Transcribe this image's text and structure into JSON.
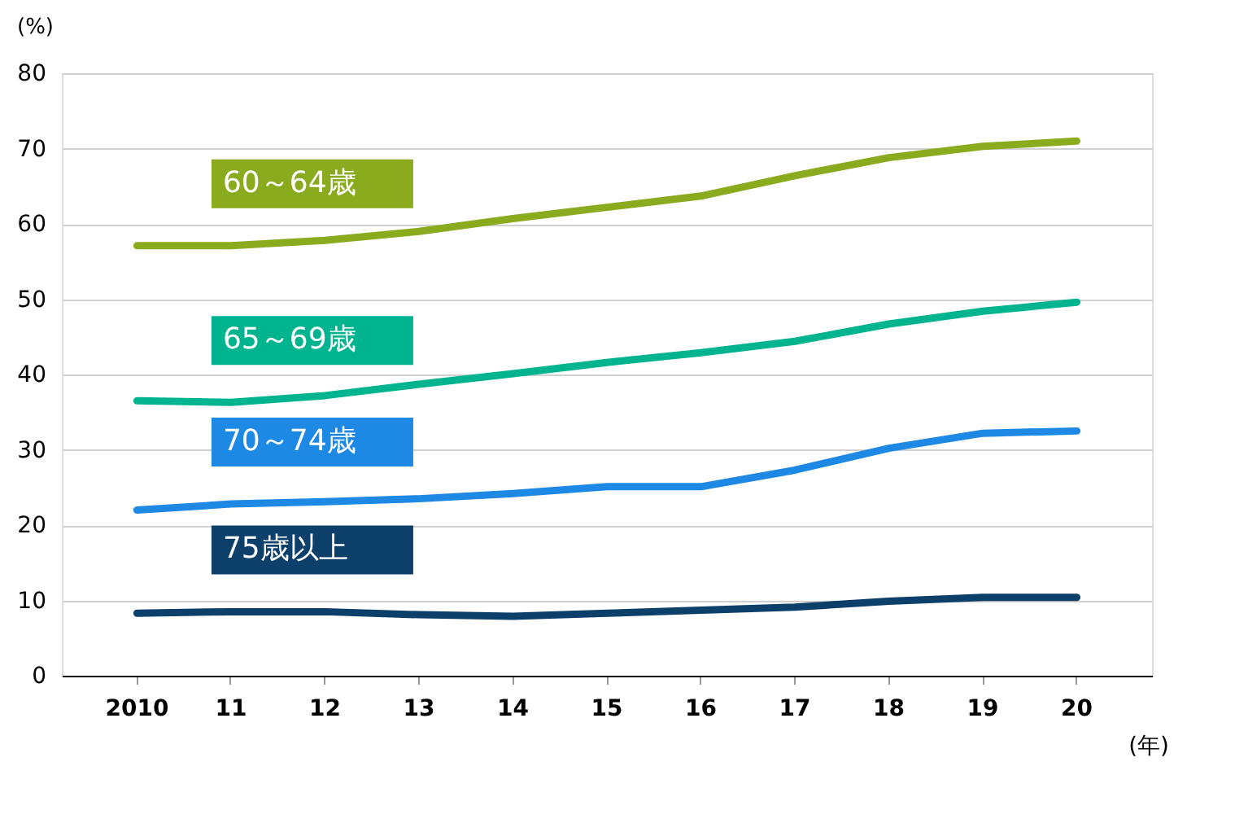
{
  "chart_data": {
    "type": "line",
    "xlabel": "(年)",
    "ylabel": "(%)",
    "categories": [
      "2010",
      "11",
      "12",
      "13",
      "14",
      "15",
      "16",
      "17",
      "18",
      "19",
      "20"
    ],
    "series": [
      {
        "name": "60～64歳",
        "color": "#8aab1e",
        "values": [
          57.1,
          57.1,
          57.8,
          59.0,
          60.7,
          62.2,
          63.7,
          66.4,
          68.8,
          70.3,
          71.0
        ]
      },
      {
        "name": "65～69歳",
        "color": "#00b48f",
        "values": [
          36.5,
          36.3,
          37.2,
          38.7,
          40.1,
          41.6,
          42.9,
          44.4,
          46.7,
          48.4,
          49.6
        ]
      },
      {
        "name": "70～74歳",
        "color": "#1e88e5",
        "values": [
          22.0,
          22.8,
          23.1,
          23.5,
          24.2,
          25.1,
          25.1,
          27.3,
          30.2,
          32.2,
          32.5
        ]
      },
      {
        "name": "75歳以上",
        "color": "#0d3f6b",
        "values": [
          8.3,
          8.5,
          8.5,
          8.1,
          7.9,
          8.3,
          8.7,
          9.1,
          9.9,
          10.4,
          10.4
        ]
      }
    ],
    "ylim": [
      0,
      80
    ],
    "yticks": [
      0,
      10,
      20,
      30,
      40,
      50,
      60,
      70,
      80
    ],
    "grid": "y",
    "legend": false,
    "marker": "none",
    "line_style": "solid"
  }
}
